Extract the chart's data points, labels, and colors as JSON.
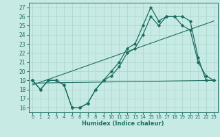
{
  "xlabel": "Humidex (Indice chaleur)",
  "ylabel": "",
  "xlim": [
    -0.5,
    23.5
  ],
  "ylim": [
    15.5,
    27.5
  ],
  "xticks": [
    0,
    1,
    2,
    3,
    4,
    5,
    6,
    7,
    8,
    9,
    10,
    11,
    12,
    13,
    14,
    15,
    16,
    17,
    18,
    19,
    20,
    21,
    22,
    23
  ],
  "yticks": [
    16,
    17,
    18,
    19,
    20,
    21,
    22,
    23,
    24,
    25,
    26,
    27
  ],
  "bg_color": "#c8eae4",
  "line_color": "#1a6e62",
  "grid_color": "#a8d4cc",
  "line1_x": [
    0,
    1,
    2,
    3,
    4,
    5,
    6,
    7,
    8,
    9,
    10,
    11,
    12,
    13,
    14,
    15,
    16,
    17,
    18,
    19,
    20,
    21,
    22,
    23
  ],
  "line1_y": [
    19,
    18,
    19,
    19,
    18.5,
    16,
    16,
    16.5,
    18,
    19,
    20,
    21,
    22.5,
    23,
    25,
    27,
    25.5,
    26,
    26,
    25,
    24.5,
    21,
    19.5,
    19
  ],
  "line2_x": [
    0,
    1,
    2,
    3,
    4,
    5,
    6,
    7,
    8,
    9,
    10,
    11,
    12,
    13,
    14,
    15,
    16,
    17,
    18,
    19,
    20,
    21,
    22,
    23
  ],
  "line2_y": [
    19,
    18,
    19,
    19,
    18.5,
    16,
    16,
    16.5,
    18,
    19,
    19.5,
    20.5,
    22,
    22.5,
    24,
    26,
    25,
    26,
    26,
    26,
    25.5,
    21.5,
    19,
    19
  ],
  "line3_x": [
    0,
    23
  ],
  "line3_y": [
    18.7,
    19.0
  ],
  "line4_x": [
    0,
    23
  ],
  "line4_y": [
    18.5,
    25.5
  ]
}
